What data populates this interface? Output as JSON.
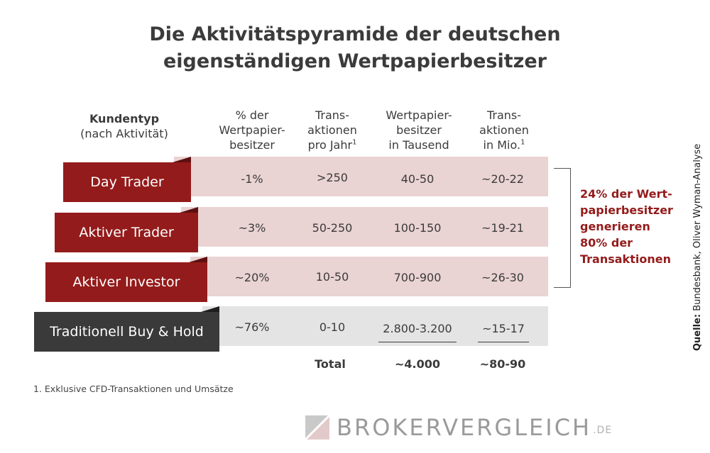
{
  "title": {
    "line1": "Die Aktivitätspyramide der deutschen",
    "line2": "eigenständigen Wertpapierbesitzer"
  },
  "headers": {
    "kundentyp": {
      "line1": "Kundentyp",
      "line2": "(nach Aktivität)"
    },
    "pct": {
      "line1": "% der",
      "line2": "Wertpapier-",
      "line3": "besitzer"
    },
    "trans_jahr": {
      "line1": "Trans-",
      "line2": "aktionen",
      "line3": "pro Jahr",
      "sup": "1"
    },
    "besitzer": {
      "line1": "Wertpapier-",
      "line2": "besitzer",
      "line3": "in Tausend"
    },
    "trans_mio": {
      "line1": "Trans-",
      "line2": "aktionen",
      "line3": "in Mio.",
      "sup": "1"
    }
  },
  "rows": [
    {
      "type": "Day Trader",
      "pct": "-1%",
      "trans": ">250",
      "besitzer": "40-50",
      "mio": "~20-22"
    },
    {
      "type": "Aktiver Trader",
      "pct": "~3%",
      "trans": "50-250",
      "besitzer": "100-150",
      "mio": "~19-21"
    },
    {
      "type": "Aktiver Investor",
      "pct": "~20%",
      "trans": "10-50",
      "besitzer": "700-900",
      "mio": "~26-30"
    },
    {
      "type": "Traditionell Buy & Hold",
      "pct": "~76%",
      "trans": "0-10",
      "besitzer": "2.800-3.200",
      "mio": "~15-17"
    }
  ],
  "totals": {
    "label": "Total",
    "besitzer": "~4.000",
    "mio": "~80-90"
  },
  "callout": {
    "line1": "24% der Wert-",
    "line2": "papierbesitzer",
    "line3": "generieren",
    "line4": "80% der",
    "line5": "Transaktionen"
  },
  "source": {
    "label": "Quelle:",
    "text": "Bundesbank, Oliver Wyman-Analyse"
  },
  "footnote": "1. Exklusive CFD-Transaktionen und Umsätze",
  "logo": {
    "text": "BROKERVERGLEICH",
    "suffix": ".DE"
  },
  "colors": {
    "accent": "#941b1b",
    "dark": "#3a3a3a",
    "band_red": "#ead3d3",
    "band_grey": "#e4e4e4"
  }
}
